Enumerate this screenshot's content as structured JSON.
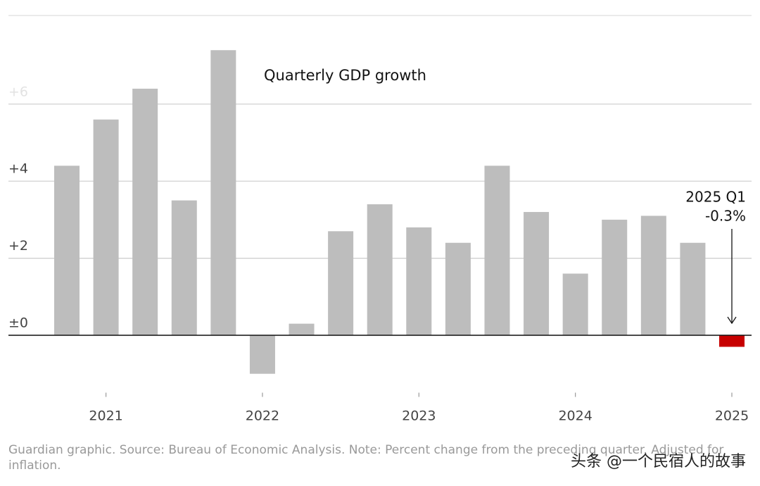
{
  "chart_data": {
    "type": "bar",
    "title": "Quarterly GDP growth",
    "categories": [
      null,
      "2021",
      null,
      null,
      null,
      "2022",
      null,
      null,
      null,
      "2023",
      null,
      null,
      null,
      "2024",
      null,
      null,
      null,
      "2025"
    ],
    "values": [
      4.4,
      5.6,
      6.4,
      3.5,
      7.4,
      -1.0,
      0.3,
      2.7,
      3.4,
      2.8,
      2.4,
      4.4,
      3.2,
      1.6,
      3.0,
      3.1,
      2.4,
      -0.3
    ],
    "value_labels": [
      null,
      null,
      null,
      null,
      null,
      null,
      null,
      null,
      null,
      null,
      null,
      null,
      null,
      null,
      null,
      null,
      null,
      "-0.3%"
    ],
    "colors": [
      "#bdbdbd",
      "#bdbdbd",
      "#bdbdbd",
      "#bdbdbd",
      "#bdbdbd",
      "#bdbdbd",
      "#bdbdbd",
      "#bdbdbd",
      "#bdbdbd",
      "#bdbdbd",
      "#bdbdbd",
      "#bdbdbd",
      "#bdbdbd",
      "#bdbdbd",
      "#bdbdbd",
      "#bdbdbd",
      "#bdbdbd",
      "#c70000"
    ],
    "annotation": "2025 Q1",
    "ylim": [
      -1.6,
      8.3
    ],
    "yticks": [
      {
        "value": 0,
        "label": "±0"
      },
      {
        "value": 2,
        "label": "+2"
      },
      {
        "value": 4,
        "label": "+4"
      },
      {
        "value": 6,
        "label": "+6"
      }
    ],
    "grid": true,
    "source": "Guardian graphic. Source: Bureau of Economic Analysis. Note: Percent change from the preceding quarter. Adjusted for inflation.",
    "watermark": "头条 @一个民宿人的故事"
  }
}
